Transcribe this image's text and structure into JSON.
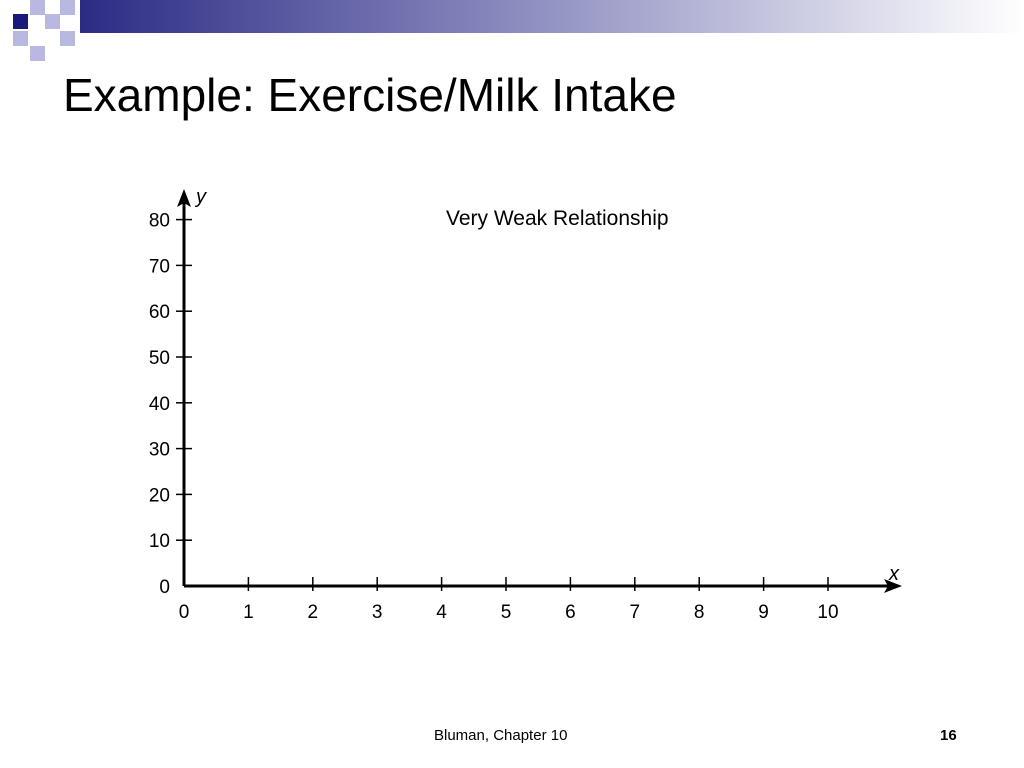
{
  "slide": {
    "title": "Example: Exercise/Milk Intake",
    "footer": "Bluman, Chapter 10",
    "page_number": "16"
  },
  "theme": {
    "banner_color": "#1a1a7a",
    "square_dark": "#1a1a7a",
    "square_light": "#b8b8e0"
  },
  "chart_data": {
    "type": "scatter",
    "annotation": "Very Weak Relationship",
    "xlabel": "x",
    "ylabel": "y",
    "xlim": [
      0,
      10
    ],
    "ylim": [
      0,
      80
    ],
    "x_ticks": [
      "0",
      "1",
      "2",
      "3",
      "4",
      "5",
      "6",
      "7",
      "8",
      "9",
      "10"
    ],
    "y_ticks": [
      "0",
      "10",
      "20",
      "30",
      "40",
      "50",
      "60",
      "70",
      "80"
    ],
    "series": [
      {
        "x": [],
        "y": []
      }
    ],
    "grid": false
  }
}
